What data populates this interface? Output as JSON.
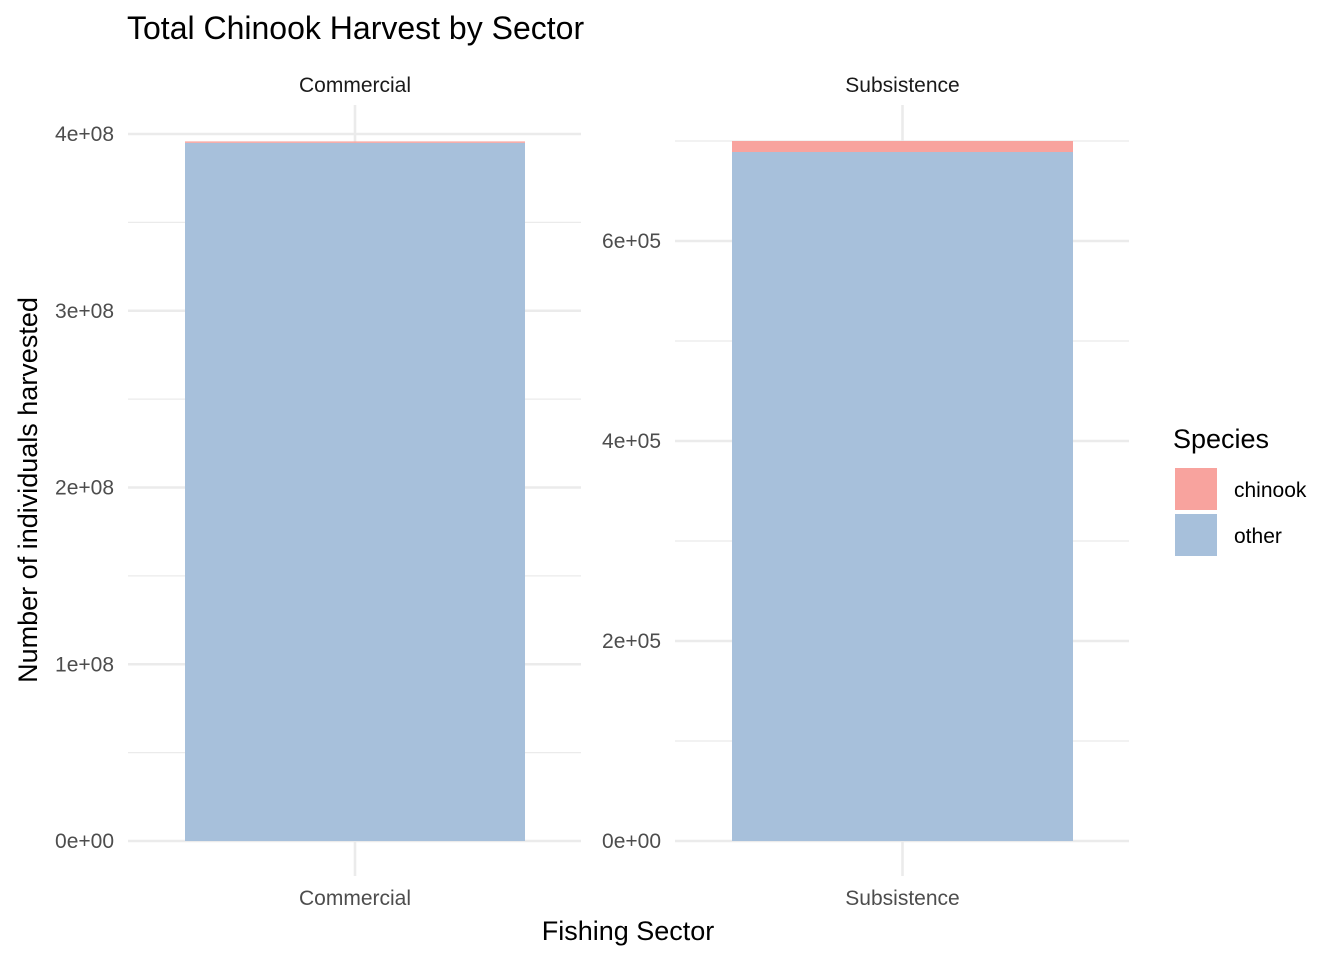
{
  "chart_data": {
    "type": "bar",
    "stacked": true,
    "title": "Total Chinook Harvest by Sector",
    "xlabel": "Fishing Sector",
    "ylabel": "Number of individuals harvested",
    "legend": {
      "title": "Species",
      "placement": "right",
      "entries": [
        {
          "label": "chinook",
          "color": "#F8A39E"
        },
        {
          "label": "other",
          "color": "#A7C0DB"
        }
      ]
    },
    "grid": true,
    "facets": [
      {
        "strip_label": "Commercial",
        "category": "Commercial",
        "ylim": [
          0,
          400000000
        ],
        "yticks": [
          {
            "value": 0,
            "label": "0e+00"
          },
          {
            "value": 100000000,
            "label": "1e+08"
          },
          {
            "value": 200000000,
            "label": "2e+08"
          },
          {
            "value": 300000000,
            "label": "3e+08"
          },
          {
            "value": 400000000,
            "label": "4e+08"
          }
        ],
        "series": [
          {
            "name": "other",
            "value": 395000000
          },
          {
            "name": "chinook",
            "value": 800000
          }
        ]
      },
      {
        "strip_label": "Subsistence",
        "category": "Subsistence",
        "ylim": [
          0,
          700000
        ],
        "yticks": [
          {
            "value": 0,
            "label": "0e+00"
          },
          {
            "value": 200000,
            "label": "2e+05"
          },
          {
            "value": 400000,
            "label": "4e+05"
          },
          {
            "value": 600000,
            "label": "6e+05"
          }
        ],
        "series": [
          {
            "name": "other",
            "value": 689000
          },
          {
            "name": "chinook",
            "value": 11000
          }
        ]
      }
    ]
  }
}
